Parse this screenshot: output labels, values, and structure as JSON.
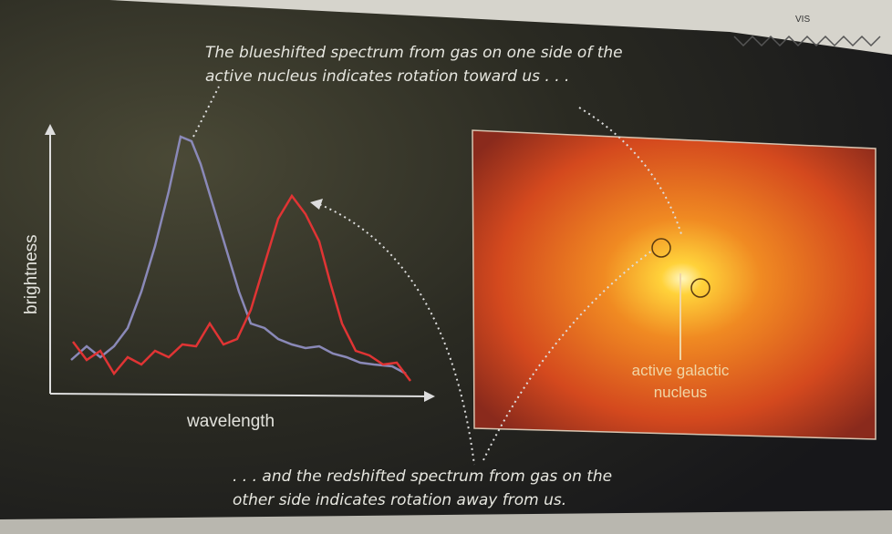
{
  "top_caption": {
    "lines": [
      "The blueshifted spectrum from gas on one side of the",
      "active nucleus indicates rotation toward us . . ."
    ]
  },
  "graph": {
    "y_label": "brightness",
    "x_label": "wavelength"
  },
  "image": {
    "label_lines": [
      "active galactic",
      "nucleus"
    ]
  },
  "bottom_caption": {
    "lines": [
      ". . . and the redshifted spectrum from gas on the",
      "other side indicates rotation away from us."
    ]
  },
  "badge": "VIS"
}
